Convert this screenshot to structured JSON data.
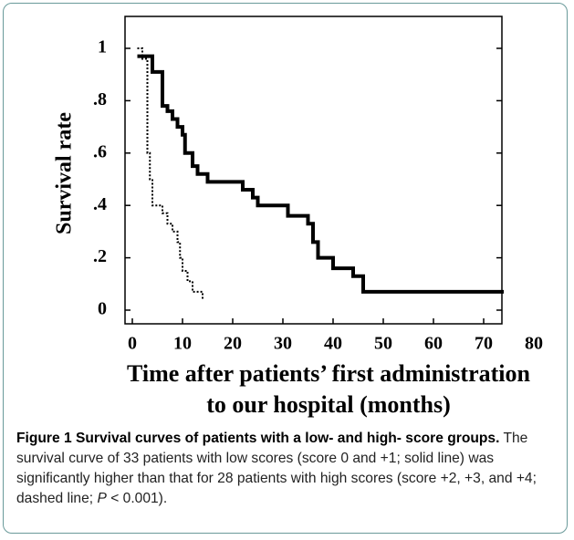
{
  "chart_data": {
    "type": "step",
    "y_label": "Survival rate",
    "x_label": [
      "Time after patients’ first administration",
      "to our hospital (months)"
    ],
    "xlim": [
      0,
      80
    ],
    "xticks": [
      0,
      10,
      20,
      30,
      40,
      50,
      60,
      70,
      80
    ],
    "ylim": [
      0,
      1
    ],
    "yticks": [
      0,
      {
        "value": 0.2,
        "label": ".2"
      },
      {
        "value": 0.4,
        "label": ".4"
      },
      {
        "value": 0.6,
        "label": ".6"
      },
      {
        "value": 0.8,
        "label": ".8"
      },
      1
    ],
    "series": [
      {
        "color": "#000000",
        "dash": "solid",
        "x": [
          1,
          4,
          6,
          7,
          8,
          9,
          10,
          10.5,
          12,
          13,
          15,
          22,
          24,
          25,
          31,
          35,
          36,
          37,
          40,
          44,
          46,
          74
        ],
        "values": [
          0.97,
          0.91,
          0.78,
          0.76,
          0.73,
          0.7,
          0.67,
          0.6,
          0.55,
          0.52,
          0.49,
          0.46,
          0.43,
          0.4,
          0.36,
          0.33,
          0.26,
          0.2,
          0.16,
          0.13,
          0.07,
          0.07
        ]
      },
      {
        "color": "#000000",
        "dash": "dashed",
        "x": [
          1,
          2,
          3,
          3.5,
          4,
          6,
          7,
          8,
          9,
          9.5,
          10,
          11,
          12,
          14
        ],
        "values": [
          1,
          0.96,
          0.6,
          0.5,
          0.4,
          0.37,
          0.33,
          0.3,
          0.26,
          0.2,
          0.15,
          0.11,
          0.07,
          0.04
        ]
      }
    ]
  },
  "caption": {
    "title": "Figure 1 Survival curves of patients with a low- and high- score groups.",
    "text": "The survival curve of 33 patients with low scores (score 0 and +1; solid line) was significantly higher than that for 28 patients with high scores (score +2, +3, and +4; dashed line;",
    "p": "P",
    "p_text": "< 0.001)."
  }
}
